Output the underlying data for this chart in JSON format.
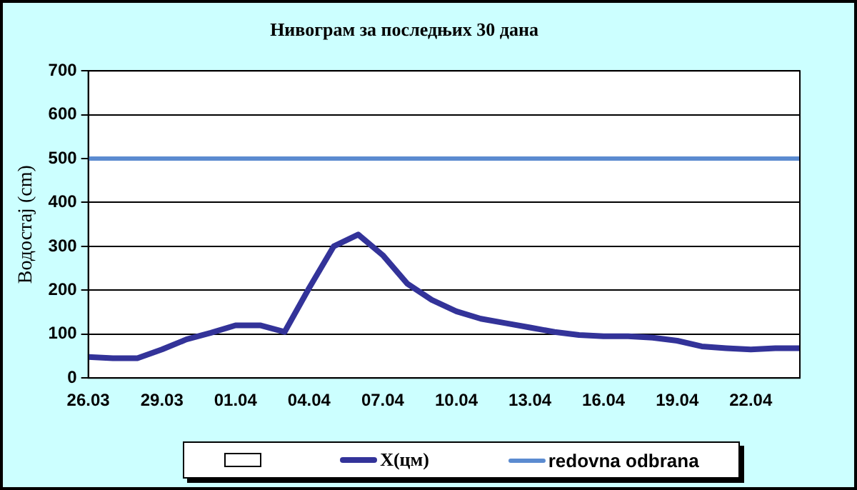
{
  "chart_data": {
    "type": "line",
    "title": "Нивограм за последњих 30 дана",
    "ylabel": "Водостај (cm)",
    "categories": [
      "26.03",
      null,
      null,
      "29.03",
      null,
      null,
      "01.04",
      null,
      null,
      "04.04",
      null,
      null,
      "07.04",
      null,
      null,
      "10.04",
      null,
      null,
      "13.04",
      null,
      null,
      "16.04",
      null,
      null,
      "19.04",
      null,
      null,
      "22.04",
      null,
      null
    ],
    "series": [
      {
        "name": "X(цм)",
        "color": "#333399",
        "values": [
          48,
          45,
          45,
          65,
          88,
          103,
          120,
          120,
          105,
          205,
          300,
          327,
          280,
          215,
          178,
          152,
          135,
          125,
          115,
          105,
          98,
          95,
          95,
          92,
          85,
          72,
          68,
          65,
          68,
          68
        ]
      }
    ],
    "ref_lines": [
      {
        "axis": "y",
        "value": 500,
        "label": "redovna odbrana",
        "color": "#5b8bd0"
      }
    ],
    "ylim": [
      0,
      700
    ],
    "yticks": [
      0,
      100,
      200,
      300,
      400,
      500,
      600,
      700
    ],
    "grid": "y",
    "legend": "bottom",
    "marker": "none",
    "line_style": "solid"
  }
}
